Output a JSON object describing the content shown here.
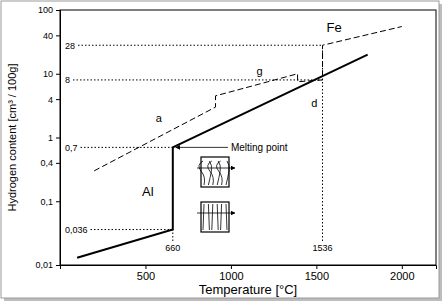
{
  "chart_data": {
    "type": "line",
    "x_label": "Temperature [°C]",
    "y_label": "Hydrogen content [cm³ / 100g]",
    "log": "y",
    "grid": false,
    "xlim": [
      0,
      2200
    ],
    "ylim": [
      0.01,
      100
    ],
    "xticks": [
      500,
      1000,
      1500,
      2000
    ],
    "yticks": [
      {
        "value": 0.01,
        "label": "0,01"
      },
      {
        "value": 0.1,
        "label": "0,1"
      },
      {
        "value": 0.4,
        "label": "0,4"
      },
      1,
      4,
      10,
      40,
      100
    ],
    "series": [
      {
        "name": "Al",
        "color": "#000000",
        "line_style": "solid",
        "x": [
          100,
          660,
          660,
          1800
        ],
        "values": [
          0.013,
          0.036,
          0.7,
          20
        ],
        "label_x": 480,
        "label_y": 0.12
      },
      {
        "name": "Fe",
        "color": "#000000",
        "line_style": "dashed",
        "x": [
          200,
          910,
          910,
          1390,
          1390,
          1536,
          1536,
          2000
        ],
        "values": [
          0.3,
          3,
          4.5,
          10,
          7.5,
          8,
          28,
          55
        ],
        "label_x": 1560,
        "label_y": 45
      }
    ],
    "reference_lines": [
      {
        "axis": "y",
        "value": 28,
        "label": "28",
        "x_end": 1536
      },
      {
        "axis": "y",
        "value": 8,
        "label": "8",
        "x_end": 1536
      },
      {
        "axis": "y",
        "value": 0.7,
        "label": "0,7",
        "x_end": 660
      },
      {
        "axis": "y",
        "value": 0.036,
        "label": "0,036",
        "x_end": 660
      },
      {
        "axis": "x",
        "value": 660,
        "label": "660",
        "y_end": 0.036
      },
      {
        "axis": "x",
        "value": 1536,
        "label": "1536",
        "y_end": 28
      }
    ],
    "annotations": [
      {
        "text": "a",
        "x": 560,
        "y": 2
      },
      {
        "text": "g",
        "x": 1150,
        "y": 11
      },
      {
        "text": "d",
        "x": 1470,
        "y": 3.5
      },
      {
        "text": "Melting point",
        "x": 1000,
        "y": 0.7,
        "arrow_x": 660,
        "arrow_y": 0.7
      }
    ]
  }
}
